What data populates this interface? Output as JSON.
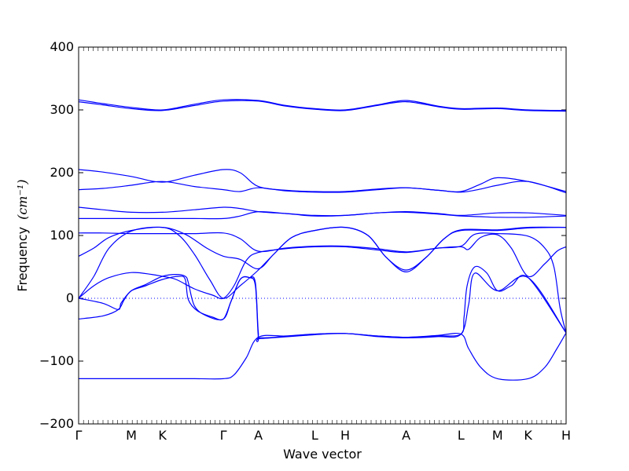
{
  "chart_data": {
    "type": "line",
    "title": "",
    "xlabel": "Wave vector",
    "ylabel": "Frequency",
    "ylabel_unit": "(cm⁻¹)",
    "ylim": [
      -200,
      400
    ],
    "yticks": [
      -200,
      -100,
      0,
      100,
      200,
      300,
      400
    ],
    "xlim": [
      0,
      16
    ],
    "xticks": [
      {
        "label": "Γ",
        "x": 0
      },
      {
        "label": "M",
        "x": 1.73
      },
      {
        "label": "K",
        "x": 2.75
      },
      {
        "label": "Γ",
        "x": 4.75
      },
      {
        "label": "A",
        "x": 5.9
      },
      {
        "label": "L",
        "x": 7.75
      },
      {
        "label": "H",
        "x": 8.75
      },
      {
        "label": "A",
        "x": 10.75
      },
      {
        "label": "L",
        "x": 12.55
      },
      {
        "label": "M",
        "x": 13.75
      },
      {
        "label": "K",
        "x": 14.75
      },
      {
        "label": "H",
        "x": 16
      }
    ],
    "zero_line": {
      "y": 0,
      "style": "dotted"
    },
    "line_color": "#0000ff",
    "grid": false,
    "series": [
      {
        "points": [
          [
            0,
            313
          ],
          [
            0.8,
            308
          ],
          [
            1.73,
            302
          ],
          [
            2.75,
            299
          ],
          [
            3.8,
            307
          ],
          [
            4.75,
            314
          ],
          [
            5.9,
            314
          ],
          [
            6.8,
            306
          ],
          [
            7.75,
            301
          ],
          [
            8.75,
            299
          ],
          [
            9.8,
            307
          ],
          [
            10.75,
            313
          ],
          [
            11.8,
            305
          ],
          [
            12.55,
            301
          ],
          [
            13.75,
            302
          ],
          [
            14.75,
            299
          ],
          [
            16,
            298
          ]
        ]
      },
      {
        "points": [
          [
            0,
            316
          ],
          [
            0.8,
            310
          ],
          [
            1.73,
            304
          ],
          [
            2.75,
            300
          ],
          [
            3.8,
            309
          ],
          [
            4.75,
            316
          ],
          [
            5.9,
            315
          ],
          [
            6.8,
            307
          ],
          [
            7.75,
            302
          ],
          [
            8.75,
            300
          ],
          [
            9.8,
            308
          ],
          [
            10.75,
            315
          ],
          [
            11.8,
            306
          ],
          [
            12.55,
            302
          ],
          [
            13.75,
            303
          ],
          [
            14.75,
            300
          ],
          [
            16,
            299
          ]
        ]
      },
      {
        "points": [
          [
            0,
            205
          ],
          [
            0.8,
            201
          ],
          [
            1.73,
            194
          ],
          [
            2.75,
            185
          ],
          [
            3.8,
            196
          ],
          [
            4.75,
            205
          ],
          [
            5.3,
            200
          ],
          [
            5.9,
            178
          ],
          [
            6.8,
            172
          ],
          [
            7.75,
            170
          ],
          [
            8.75,
            170
          ],
          [
            9.8,
            174
          ],
          [
            10.75,
            176
          ],
          [
            11.8,
            172
          ],
          [
            12.55,
            170
          ],
          [
            13.2,
            182
          ],
          [
            13.75,
            192
          ],
          [
            14.75,
            186
          ],
          [
            16,
            170
          ]
        ]
      },
      {
        "points": [
          [
            0,
            173
          ],
          [
            0.8,
            175
          ],
          [
            1.73,
            180
          ],
          [
            2.75,
            186
          ],
          [
            3.8,
            178
          ],
          [
            4.75,
            173
          ],
          [
            5.3,
            170
          ],
          [
            5.9,
            176
          ],
          [
            6.8,
            171
          ],
          [
            7.75,
            169
          ],
          [
            8.75,
            169
          ],
          [
            9.8,
            173
          ],
          [
            10.75,
            176
          ],
          [
            11.8,
            172
          ],
          [
            12.55,
            169
          ],
          [
            13.2,
            174
          ],
          [
            13.75,
            180
          ],
          [
            14.75,
            186
          ],
          [
            16,
            168
          ]
        ]
      },
      {
        "points": [
          [
            0,
            145
          ],
          [
            0.8,
            141
          ],
          [
            1.73,
            137
          ],
          [
            2.75,
            137
          ],
          [
            3.8,
            141
          ],
          [
            4.75,
            145
          ],
          [
            5.3,
            143
          ],
          [
            5.9,
            138
          ],
          [
            6.8,
            135
          ],
          [
            7.75,
            132
          ],
          [
            8.75,
            132
          ],
          [
            9.8,
            136
          ],
          [
            10.75,
            138
          ],
          [
            11.8,
            135
          ],
          [
            12.55,
            132
          ],
          [
            13.75,
            136
          ],
          [
            14.75,
            136
          ],
          [
            16,
            132
          ]
        ]
      },
      {
        "points": [
          [
            0,
            127
          ],
          [
            0.8,
            127
          ],
          [
            1.73,
            127
          ],
          [
            2.75,
            127
          ],
          [
            3.8,
            127
          ],
          [
            4.75,
            127
          ],
          [
            5.3,
            131
          ],
          [
            5.9,
            138
          ],
          [
            6.8,
            135
          ],
          [
            7.75,
            131
          ],
          [
            8.75,
            132
          ],
          [
            9.8,
            136
          ],
          [
            10.75,
            137
          ],
          [
            11.8,
            134
          ],
          [
            12.55,
            131
          ],
          [
            13.2,
            130
          ],
          [
            13.75,
            129
          ],
          [
            14.75,
            129
          ],
          [
            16,
            131
          ]
        ]
      },
      {
        "points": [
          [
            0,
            104
          ],
          [
            0.8,
            104
          ],
          [
            1.73,
            103
          ],
          [
            2.75,
            103
          ],
          [
            3.8,
            103
          ],
          [
            4.75,
            104
          ],
          [
            5.3,
            95
          ],
          [
            5.9,
            75
          ],
          [
            6.8,
            80
          ],
          [
            7.75,
            83
          ],
          [
            8.75,
            83
          ],
          [
            9.8,
            79
          ],
          [
            10.75,
            74
          ],
          [
            11.8,
            80
          ],
          [
            12.55,
            83
          ],
          [
            13.0,
            102
          ],
          [
            13.75,
            103
          ],
          [
            14.75,
            99
          ],
          [
            15.3,
            80
          ],
          [
            15.6,
            50
          ],
          [
            15.8,
            -15
          ],
          [
            16,
            -55
          ]
        ]
      },
      {
        "points": [
          [
            0,
            67
          ],
          [
            0.5,
            80
          ],
          [
            1.0,
            97
          ],
          [
            1.73,
            108
          ],
          [
            2.75,
            113
          ],
          [
            3.5,
            102
          ],
          [
            4.2,
            80
          ],
          [
            4.75,
            67
          ],
          [
            5.3,
            62
          ],
          [
            5.9,
            47
          ],
          [
            6.4,
            70
          ],
          [
            7.0,
            97
          ],
          [
            7.75,
            108
          ],
          [
            8.75,
            113
          ],
          [
            9.5,
            100
          ],
          [
            10.1,
            65
          ],
          [
            10.75,
            45
          ],
          [
            11.4,
            65
          ],
          [
            12.0,
            95
          ],
          [
            12.55,
            109
          ],
          [
            13.75,
            109
          ],
          [
            14.75,
            113
          ],
          [
            16,
            113
          ]
        ]
      },
      {
        "points": [
          [
            0,
            0
          ],
          [
            0.5,
            35
          ],
          [
            1.0,
            80
          ],
          [
            1.73,
            107
          ],
          [
            2.75,
            113
          ],
          [
            3.3,
            100
          ],
          [
            3.8,
            70
          ],
          [
            4.3,
            30
          ],
          [
            4.75,
            0
          ],
          [
            5.3,
            20
          ],
          [
            5.9,
            45
          ],
          [
            6.4,
            70
          ],
          [
            7.0,
            97
          ],
          [
            7.75,
            108
          ],
          [
            8.75,
            113
          ],
          [
            9.5,
            100
          ],
          [
            10.1,
            65
          ],
          [
            10.75,
            42
          ],
          [
            11.4,
            65
          ],
          [
            12.0,
            95
          ],
          [
            12.55,
            108
          ],
          [
            13.75,
            108
          ],
          [
            14.75,
            112
          ],
          [
            16,
            113
          ]
        ]
      },
      {
        "points": [
          [
            0,
            0
          ],
          [
            0.5,
            20
          ],
          [
            1.0,
            33
          ],
          [
            1.73,
            41
          ],
          [
            2.4,
            38
          ],
          [
            2.75,
            35
          ],
          [
            3.2,
            30
          ],
          [
            3.8,
            15
          ],
          [
            4.4,
            5
          ],
          [
            4.75,
            0
          ],
          [
            5.1,
            20
          ],
          [
            5.5,
            60
          ],
          [
            5.9,
            73
          ],
          [
            6.8,
            79
          ],
          [
            7.75,
            82
          ],
          [
            8.75,
            82
          ],
          [
            9.8,
            77
          ],
          [
            10.75,
            73
          ],
          [
            11.8,
            80
          ],
          [
            12.55,
            82
          ],
          [
            12.8,
            78
          ],
          [
            13.2,
            97
          ],
          [
            13.75,
            101
          ],
          [
            14.2,
            80
          ],
          [
            14.75,
            35
          ],
          [
            15.3,
            55
          ],
          [
            15.7,
            75
          ],
          [
            16,
            82
          ]
        ]
      },
      {
        "points": [
          [
            0,
            0
          ],
          [
            0.8,
            -8
          ],
          [
            1.3,
            -18
          ],
          [
            1.4,
            -7
          ],
          [
            1.73,
            12
          ],
          [
            2.2,
            22
          ],
          [
            2.75,
            35
          ],
          [
            3.2,
            38
          ],
          [
            3.5,
            35
          ],
          [
            3.6,
            25
          ],
          [
            3.8,
            -12
          ],
          [
            4.2,
            -28
          ],
          [
            4.75,
            -33
          ],
          [
            5.0,
            -5
          ],
          [
            5.3,
            30
          ],
          [
            5.6,
            33
          ],
          [
            5.8,
            25
          ],
          [
            5.9,
            -55
          ],
          [
            6.0,
            -63
          ],
          [
            7.75,
            -57
          ],
          [
            8.75,
            -56
          ],
          [
            9.8,
            -60
          ],
          [
            10.75,
            -62
          ],
          [
            11.8,
            -60
          ],
          [
            12.55,
            -57
          ],
          [
            12.65,
            -30
          ],
          [
            12.75,
            20
          ],
          [
            13.0,
            50
          ],
          [
            13.4,
            40
          ],
          [
            13.75,
            12
          ],
          [
            14.2,
            20
          ],
          [
            14.75,
            33
          ],
          [
            16,
            -55
          ]
        ]
      },
      {
        "points": [
          [
            0,
            -33
          ],
          [
            0.8,
            -28
          ],
          [
            1.3,
            -18
          ],
          [
            1.5,
            -2
          ],
          [
            1.73,
            12
          ],
          [
            2.2,
            20
          ],
          [
            2.75,
            30
          ],
          [
            3.3,
            35
          ],
          [
            3.5,
            30
          ],
          [
            3.6,
            -2
          ],
          [
            3.9,
            -20
          ],
          [
            4.4,
            -30
          ],
          [
            4.75,
            -33
          ],
          [
            5.0,
            -5
          ],
          [
            5.3,
            30
          ],
          [
            5.6,
            33
          ],
          [
            5.8,
            20
          ],
          [
            5.9,
            -62
          ],
          [
            6.0,
            -64
          ],
          [
            7.75,
            -58
          ],
          [
            8.75,
            -56
          ],
          [
            9.8,
            -61
          ],
          [
            10.75,
            -63
          ],
          [
            11.8,
            -61
          ],
          [
            12.55,
            -57
          ],
          [
            12.8,
            -10
          ],
          [
            13.0,
            40
          ],
          [
            13.75,
            12
          ],
          [
            14.75,
            33
          ],
          [
            16,
            -55
          ]
        ]
      },
      {
        "points": [
          [
            0,
            -128
          ],
          [
            0.8,
            -128
          ],
          [
            1.73,
            -128
          ],
          [
            2.75,
            -128
          ],
          [
            3.8,
            -128
          ],
          [
            4.75,
            -128
          ],
          [
            5.1,
            -122
          ],
          [
            5.5,
            -95
          ],
          [
            5.9,
            -62
          ],
          [
            6.8,
            -60
          ],
          [
            7.75,
            -57
          ],
          [
            8.75,
            -56
          ],
          [
            9.8,
            -60
          ],
          [
            10.75,
            -62
          ],
          [
            11.8,
            -59
          ],
          [
            12.55,
            -57
          ],
          [
            12.8,
            -80
          ],
          [
            13.2,
            -110
          ],
          [
            13.75,
            -128
          ],
          [
            14.75,
            -128
          ],
          [
            15.3,
            -110
          ],
          [
            15.7,
            -80
          ],
          [
            16,
            -55
          ]
        ]
      }
    ]
  }
}
